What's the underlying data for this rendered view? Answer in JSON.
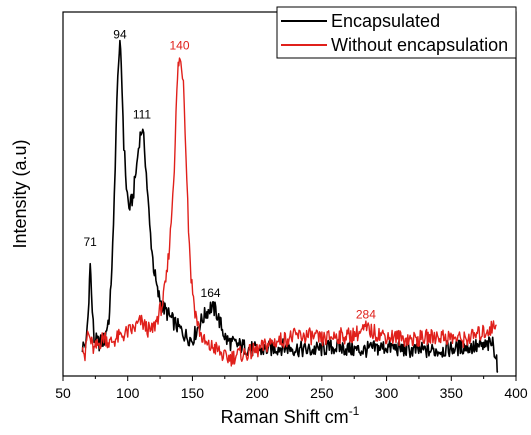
{
  "chart_data": {
    "type": "line",
    "xlabel": "Raman Shift cm",
    "xlabel_superscript": "-1",
    "ylabel": "Intensity (a.u)",
    "xlim": [
      50,
      400
    ],
    "ylim": [
      0,
      1
    ],
    "y_ticks_labeled": false,
    "xticks": [
      50,
      100,
      150,
      200,
      250,
      300,
      350,
      400
    ],
    "xtick_labels": [
      "50",
      "100",
      "150",
      "200",
      "250",
      "300",
      "350",
      "400"
    ],
    "grid": false,
    "legend": {
      "position": "top-right"
    },
    "colors": {
      "encapsulated": "#000000",
      "without": "#e0201b"
    },
    "series": [
      {
        "name": "Encapsulated",
        "color": "#000000",
        "points": [
          [
            65,
            0.08
          ],
          [
            68,
            0.09
          ],
          [
            70,
            0.2
          ],
          [
            71,
            0.33
          ],
          [
            72,
            0.22
          ],
          [
            74,
            0.1
          ],
          [
            78,
            0.09
          ],
          [
            82,
            0.1
          ],
          [
            86,
            0.17
          ],
          [
            89,
            0.4
          ],
          [
            91,
            0.68
          ],
          [
            93,
            0.88
          ],
          [
            94,
            0.9
          ],
          [
            95,
            0.86
          ],
          [
            97,
            0.64
          ],
          [
            99,
            0.52
          ],
          [
            101,
            0.46
          ],
          [
            104,
            0.49
          ],
          [
            107,
            0.58
          ],
          [
            109,
            0.65
          ],
          [
            111,
            0.68
          ],
          [
            113,
            0.63
          ],
          [
            115,
            0.52
          ],
          [
            117,
            0.41
          ],
          [
            120,
            0.3
          ],
          [
            123,
            0.23
          ],
          [
            127,
            0.19
          ],
          [
            131,
            0.17
          ],
          [
            135,
            0.15
          ],
          [
            140,
            0.13
          ],
          [
            145,
            0.11
          ],
          [
            150,
            0.1
          ],
          [
            155,
            0.14
          ],
          [
            160,
            0.17
          ],
          [
            164,
            0.19
          ],
          [
            168,
            0.18
          ],
          [
            172,
            0.14
          ],
          [
            176,
            0.1
          ],
          [
            180,
            0.09
          ],
          [
            190,
            0.08
          ],
          [
            200,
            0.07
          ],
          [
            220,
            0.08
          ],
          [
            240,
            0.07
          ],
          [
            260,
            0.08
          ],
          [
            280,
            0.07
          ],
          [
            300,
            0.08
          ],
          [
            320,
            0.07
          ],
          [
            340,
            0.07
          ],
          [
            360,
            0.08
          ],
          [
            375,
            0.08
          ],
          [
            382,
            0.09
          ],
          [
            385,
            0.05
          ],
          [
            386,
            0.01
          ]
        ]
      },
      {
        "name": "Without encapsulation",
        "color": "#e0201b",
        "points": [
          [
            65,
            0.1
          ],
          [
            67,
            0.05
          ],
          [
            69,
            0.12
          ],
          [
            71,
            0.1
          ],
          [
            74,
            0.07
          ],
          [
            78,
            0.09
          ],
          [
            82,
            0.11
          ],
          [
            86,
            0.09
          ],
          [
            90,
            0.1
          ],
          [
            95,
            0.11
          ],
          [
            100,
            0.12
          ],
          [
            105,
            0.13
          ],
          [
            110,
            0.15
          ],
          [
            115,
            0.13
          ],
          [
            118,
            0.12
          ],
          [
            121,
            0.14
          ],
          [
            124,
            0.17
          ],
          [
            127,
            0.2
          ],
          [
            130,
            0.27
          ],
          [
            133,
            0.39
          ],
          [
            136,
            0.58
          ],
          [
            138,
            0.78
          ],
          [
            139,
            0.85
          ],
          [
            140,
            0.87
          ],
          [
            141,
            0.86
          ],
          [
            143,
            0.82
          ],
          [
            145,
            0.62
          ],
          [
            147,
            0.41
          ],
          [
            149,
            0.27
          ],
          [
            152,
            0.18
          ],
          [
            155,
            0.13
          ],
          [
            158,
            0.1
          ],
          [
            162,
            0.08
          ],
          [
            166,
            0.08
          ],
          [
            170,
            0.07
          ],
          [
            175,
            0.05
          ],
          [
            180,
            0.05
          ],
          [
            185,
            0.06
          ],
          [
            190,
            0.06
          ],
          [
            200,
            0.07
          ],
          [
            210,
            0.09
          ],
          [
            220,
            0.1
          ],
          [
            230,
            0.11
          ],
          [
            240,
            0.11
          ],
          [
            250,
            0.1
          ],
          [
            260,
            0.11
          ],
          [
            270,
            0.11
          ],
          [
            280,
            0.12
          ],
          [
            284,
            0.13
          ],
          [
            290,
            0.12
          ],
          [
            300,
            0.11
          ],
          [
            320,
            0.1
          ],
          [
            340,
            0.11
          ],
          [
            360,
            0.1
          ],
          [
            375,
            0.12
          ],
          [
            385,
            0.14
          ]
        ]
      }
    ],
    "annotations": [
      {
        "text": "71",
        "x": 71,
        "y": 0.33,
        "color": "#000000"
      },
      {
        "text": "94",
        "x": 94,
        "y": 0.9,
        "color": "#000000"
      },
      {
        "text": "111",
        "x": 111,
        "y": 0.68,
        "color": "#000000"
      },
      {
        "text": "140",
        "x": 140,
        "y": 0.87,
        "color": "#e0201b"
      },
      {
        "text": "164",
        "x": 164,
        "y": 0.19,
        "color": "#000000"
      },
      {
        "text": "284",
        "x": 284,
        "y": 0.13,
        "color": "#e0201b"
      }
    ]
  }
}
